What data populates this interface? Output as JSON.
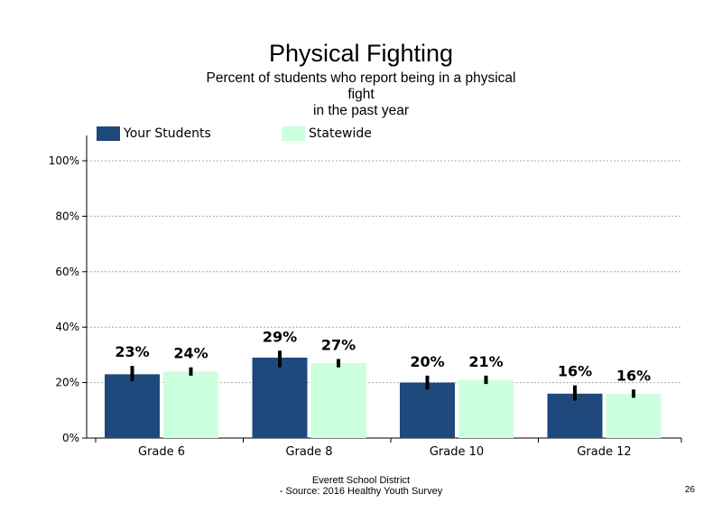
{
  "slide": {
    "title": "Physical Fighting",
    "subtitle_lines": [
      "Percent of students  who report being in a physical",
      "fight",
      "in the past year"
    ],
    "footer_lines": [
      "Everett School District",
      "- Source: 2016 Healthy  Youth Survey"
    ],
    "page_number": "26"
  },
  "colors": {
    "your_students": "#1F497D",
    "statewide": "#CCFFDD",
    "error_bar": "#000000",
    "gridline": "#A6A6A6"
  },
  "chart_data": {
    "type": "bar",
    "title": "Physical Fighting",
    "categories": [
      "Grade 6",
      "Grade 8",
      "Grade 10",
      "Grade 12"
    ],
    "series": [
      {
        "name": "Your Students",
        "values": [
          23,
          29,
          20,
          16
        ],
        "labels": [
          "23%",
          "29%",
          "20%",
          "16%"
        ],
        "error_low": [
          20.5,
          25.5,
          17.5,
          13.5
        ],
        "error_high": [
          26,
          31.5,
          22.5,
          19
        ]
      },
      {
        "name": "Statewide",
        "values": [
          24,
          27,
          21,
          16
        ],
        "labels": [
          "24%",
          "27%",
          "21%",
          "16%"
        ],
        "error_low": [
          22.5,
          25.5,
          19.5,
          14.5
        ],
        "error_high": [
          25.5,
          28.5,
          22.5,
          17.5
        ]
      }
    ],
    "y_ticks": [
      "0%",
      "20%",
      "40%",
      "60%",
      "80%",
      "100%"
    ],
    "y_tick_values": [
      0,
      20,
      40,
      60,
      80,
      100
    ],
    "ylim": [
      0,
      100
    ],
    "gridlines": "dotted",
    "legend_position": "top-left"
  }
}
